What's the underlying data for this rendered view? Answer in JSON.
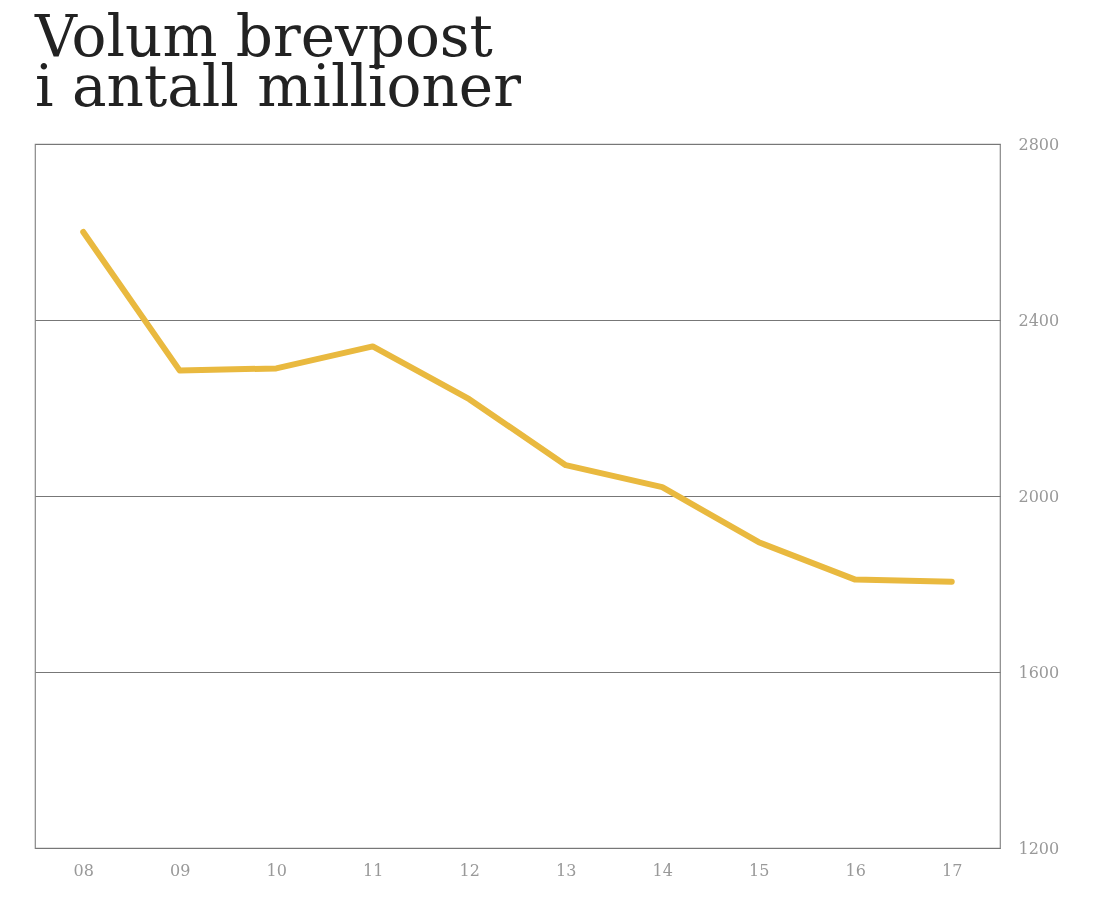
{
  "chart_data": {
    "type": "line",
    "title": "Volum brevpost\ni antall millioner",
    "categories": [
      "08",
      "09",
      "10",
      "11",
      "12",
      "13",
      "14",
      "15",
      "16",
      "17"
    ],
    "series": [
      {
        "color": "#e9b93f",
        "values": [
          2600,
          2285,
          2290,
          2340,
          2220,
          2070,
          2020,
          1895,
          1810,
          1805
        ]
      }
    ],
    "ylim": [
      1200,
      2800
    ],
    "yticks": [
      1200,
      1600,
      2000,
      2400,
      2800
    ],
    "grid": "y",
    "legend": false,
    "marker": "none",
    "line_style": "solid"
  }
}
